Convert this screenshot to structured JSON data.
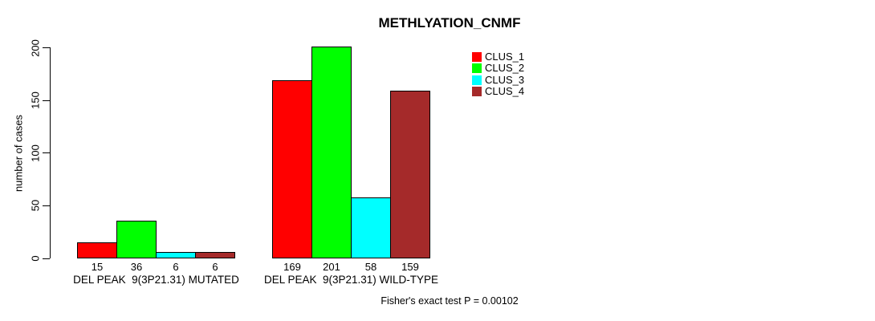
{
  "chart_data": {
    "type": "bar",
    "title": "METHLYATION_CNMF",
    "ylabel": "number of cases",
    "xlabel": "",
    "ylim": [
      0,
      200
    ],
    "yticks": [
      0,
      50,
      100,
      150,
      200
    ],
    "grid": false,
    "legend_position": "right",
    "categories": [
      "DEL PEAK  9(3P21.31) MUTATED",
      "DEL PEAK  9(3P21.31) WILD-TYPE"
    ],
    "series": [
      {
        "name": "CLUS_1",
        "color": "#ff0000",
        "values": [
          15,
          169
        ]
      },
      {
        "name": "CLUS_2",
        "color": "#00ff00",
        "values": [
          36,
          201
        ]
      },
      {
        "name": "CLUS_3",
        "color": "#00ffff",
        "values": [
          6,
          58
        ]
      },
      {
        "name": "CLUS_4",
        "color": "#a52a2a",
        "values": [
          6,
          159
        ]
      }
    ],
    "show_bar_values": true,
    "annotation": "Fisher's exact test P = 0.00102",
    "background": "#ffffff",
    "axis_color": "#000000",
    "text_color": "#000000"
  }
}
